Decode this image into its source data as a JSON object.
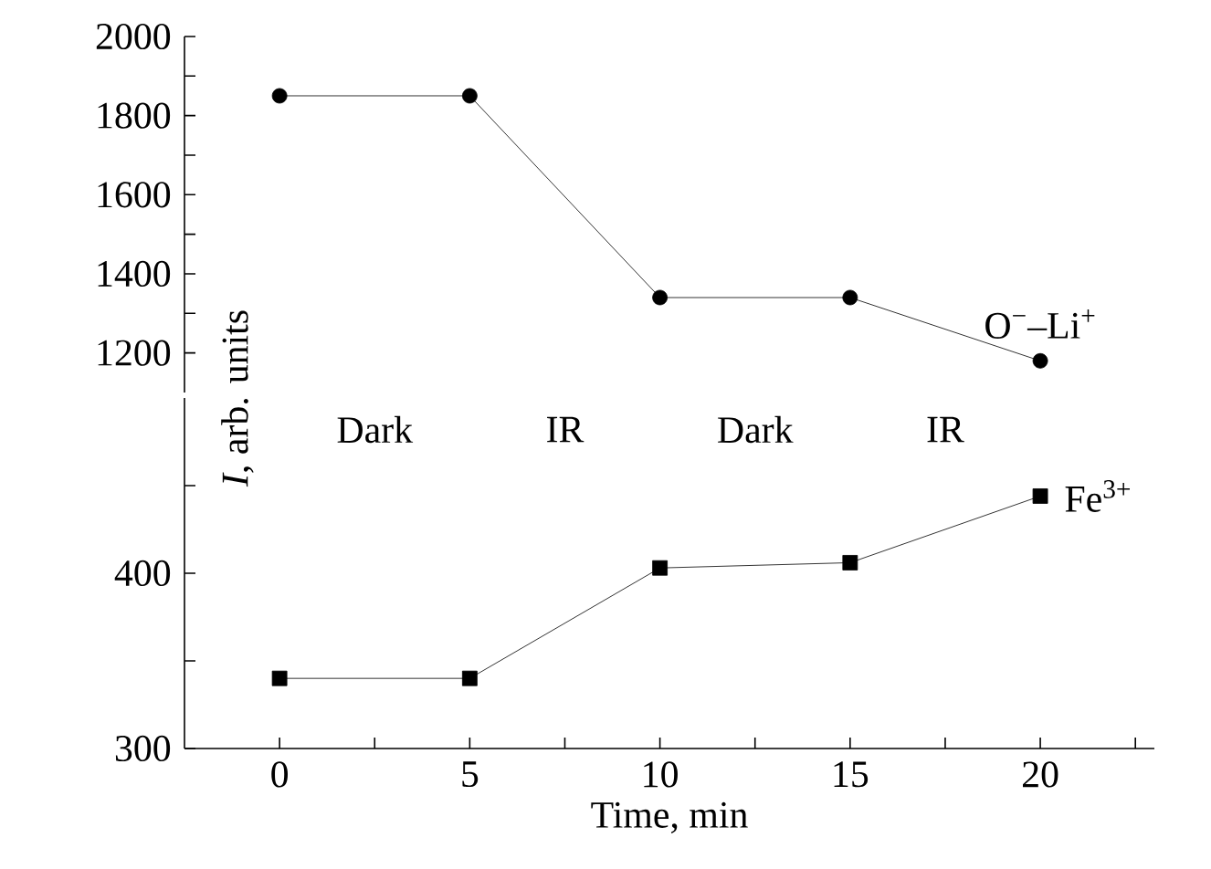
{
  "chart_data": [
    {
      "type": "line",
      "ylim": [
        1100,
        2000
      ],
      "tick_labels": "y",
      "marker": "circle",
      "line_style": "solid",
      "yticks": [
        {
          "value": 1200,
          "label": "1200"
        },
        {
          "value": 1300,
          "label": null
        },
        {
          "value": 1400,
          "label": "1400"
        },
        {
          "value": 1500,
          "label": null
        },
        {
          "value": 1600,
          "label": "1600"
        },
        {
          "value": 1700,
          "label": null
        },
        {
          "value": 1800,
          "label": "1800"
        },
        {
          "value": 1900,
          "label": null
        },
        {
          "value": 2000,
          "label": "2000"
        }
      ],
      "x": [
        0,
        5,
        10,
        15,
        20
      ],
      "series": [
        {
          "name": "O$^{−}$–Li$^{+}$",
          "color": "#000000",
          "values": [
            1850,
            1850,
            1340,
            1340,
            1180
          ]
        }
      ]
    },
    {
      "type": "line",
      "xlim": [
        -2.5,
        23
      ],
      "ylim": [
        300,
        500
      ],
      "marker": "square",
      "line_style": "solid",
      "xlabel": "Time, min",
      "ylabel": "*I*, arb. units",
      "xticks": [
        0,
        {
          "value": 2.5,
          "label": null
        },
        5,
        {
          "value": 7.5,
          "label": null
        },
        10,
        {
          "value": 12.5,
          "label": null
        },
        15,
        {
          "value": 17.5,
          "label": null
        },
        20,
        {
          "value": 22.5,
          "label": null
        }
      ],
      "yticks": [
        300,
        {
          "value": 350,
          "label": null
        },
        400,
        {
          "value": 450,
          "label": null
        }
      ],
      "x": [
        0,
        5,
        10,
        15,
        20
      ],
      "series": [
        {
          "name": "Fe$^{3+}$",
          "color": "#000000",
          "values": [
            340,
            340,
            403,
            406,
            444
          ]
        }
      ],
      "annotations": [
        "Dark",
        "IR",
        "Dark",
        "IR"
      ]
    }
  ]
}
